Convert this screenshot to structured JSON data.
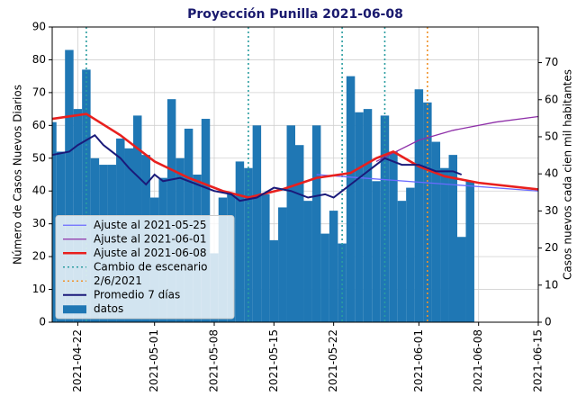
{
  "chart_data": {
    "type": "bar",
    "title": "Proyección Punilla 2021-06-08",
    "ylabel": "Número de Casos Nuevos Diarios",
    "y2label": "Casos nuevos cada cien mil habitantes",
    "xlim": [
      "2021-04-19",
      "2021-06-15"
    ],
    "xticks": [
      "2021-04-22",
      "2021-05-01",
      "2021-05-08",
      "2021-05-15",
      "2021-05-22",
      "2021-06-01",
      "2021-06-08",
      "2021-06-15"
    ],
    "ylim": [
      0,
      90
    ],
    "yticks": [
      0,
      10,
      20,
      30,
      40,
      50,
      60,
      70,
      80,
      90
    ],
    "y2lim": [
      0,
      79.6
    ],
    "y2ticks": [
      0,
      10,
      20,
      30,
      40,
      50,
      60,
      70
    ],
    "grid": true,
    "legend": "lower left",
    "series": [
      {
        "name": "Ajuste al 2021-05-25",
        "type": "line",
        "color": "#6b6bff",
        "width": 1.3,
        "x": [
          "2021-05-20",
          "2021-06-15"
        ],
        "values": [
          45,
          40
        ]
      },
      {
        "name": "Ajuste al 2021-06-01",
        "type": "line",
        "color": "#8e2fa8",
        "width": 1.3,
        "x": [
          "2021-05-27",
          "2021-06-01",
          "2021-06-05",
          "2021-06-10",
          "2021-06-15"
        ],
        "values": [
          49,
          55.5,
          58.5,
          61,
          62.7
        ]
      },
      {
        "name": "Ajuste al 2021-06-08",
        "type": "line",
        "color": "#e8201e",
        "width": 2.6,
        "x": [
          "2021-04-19",
          "2021-04-23",
          "2021-04-27",
          "2021-05-01",
          "2021-05-05",
          "2021-05-09",
          "2021-05-12",
          "2021-05-16",
          "2021-05-20",
          "2021-05-24",
          "2021-05-27",
          "2021-05-29",
          "2021-06-01",
          "2021-06-04",
          "2021-06-08",
          "2021-06-15"
        ],
        "values": [
          62,
          63.5,
          57,
          49,
          44,
          40,
          38,
          40.5,
          44,
          45.5,
          50,
          52,
          47.5,
          44.5,
          42.5,
          40.5
        ]
      },
      {
        "name": "Cambio de escenario",
        "type": "vline",
        "color": "#2a9da0",
        "x": [
          "2021-04-23",
          "2021-05-12",
          "2021-05-23",
          "2021-05-28"
        ]
      },
      {
        "name": "2/6/2021",
        "type": "vline",
        "color": "#f0922a",
        "x": [
          "2021-06-02"
        ]
      },
      {
        "name": "Promedio 7 días",
        "type": "line",
        "color": "#1a1a7a",
        "width": 2,
        "x": [
          "2021-04-19",
          "2021-04-21",
          "2021-04-22",
          "2021-04-24",
          "2021-04-25",
          "2021-04-27",
          "2021-04-28",
          "2021-04-30",
          "2021-05-01",
          "2021-05-02",
          "2021-05-04",
          "2021-05-06",
          "2021-05-08",
          "2021-05-10",
          "2021-05-11",
          "2021-05-13",
          "2021-05-15",
          "2021-05-17",
          "2021-05-19",
          "2021-05-21",
          "2021-05-22",
          "2021-05-25",
          "2021-05-27",
          "2021-05-28",
          "2021-05-30",
          "2021-06-01",
          "2021-06-02",
          "2021-06-03",
          "2021-06-05",
          "2021-06-06"
        ],
        "values": [
          51,
          52,
          54,
          57,
          54,
          50,
          47,
          42,
          45,
          43,
          44,
          42,
          40,
          39,
          37,
          38,
          41,
          40,
          38,
          39,
          38,
          44,
          48,
          50,
          48,
          48,
          47,
          46,
          46,
          45
        ]
      },
      {
        "name": "datos",
        "type": "bar",
        "color": "#1f77b4",
        "x": [
          "2021-04-19",
          "2021-04-20",
          "2021-04-21",
          "2021-04-22",
          "2021-04-23",
          "2021-04-24",
          "2021-04-25",
          "2021-04-26",
          "2021-04-27",
          "2021-04-28",
          "2021-04-29",
          "2021-04-30",
          "2021-05-01",
          "2021-05-02",
          "2021-05-03",
          "2021-05-04",
          "2021-05-05",
          "2021-05-06",
          "2021-05-07",
          "2021-05-08",
          "2021-05-09",
          "2021-05-10",
          "2021-05-11",
          "2021-05-12",
          "2021-05-13",
          "2021-05-14",
          "2021-05-15",
          "2021-05-16",
          "2021-05-17",
          "2021-05-18",
          "2021-05-19",
          "2021-05-20",
          "2021-05-21",
          "2021-05-22",
          "2021-05-23",
          "2021-05-24",
          "2021-05-25",
          "2021-05-26",
          "2021-05-27",
          "2021-05-28",
          "2021-05-29",
          "2021-05-30",
          "2021-05-31",
          "2021-06-01",
          "2021-06-02",
          "2021-06-03",
          "2021-06-04",
          "2021-06-05",
          "2021-06-06",
          "2021-06-07"
        ],
        "values": [
          61,
          52,
          83,
          65,
          77,
          50,
          48,
          48,
          56,
          53,
          63,
          51,
          38,
          44,
          68,
          50,
          59,
          45,
          62,
          21,
          38,
          39,
          49,
          47,
          60,
          39,
          25,
          35,
          60,
          54,
          37,
          60,
          27,
          34,
          24,
          75,
          64,
          65,
          43,
          63,
          52,
          37,
          41,
          71,
          67,
          55,
          47,
          51,
          26,
          43
        ]
      }
    ]
  }
}
